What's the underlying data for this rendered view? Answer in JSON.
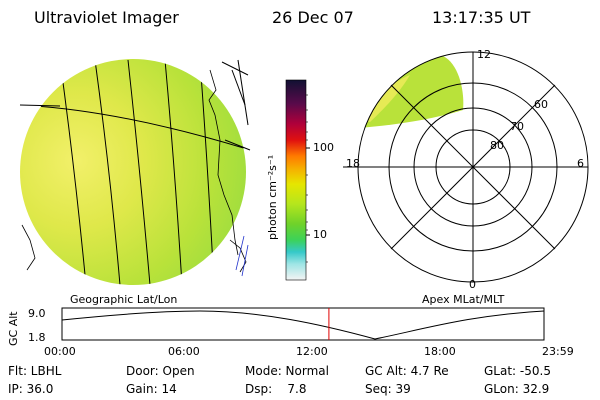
{
  "header": {
    "instrument": "Ultraviolet Imager",
    "date": "26 Dec 07",
    "time": "13:17:35 UT"
  },
  "colorbar": {
    "unit_label": "photon cm⁻²s⁻¹",
    "ticks": [
      "100",
      "10"
    ],
    "colors": [
      "#111133",
      "#7a0a3a",
      "#b0003a",
      "#e01010",
      "#ff7a00",
      "#f5b400",
      "#e6e600",
      "#b5e61d",
      "#7ed321",
      "#3cd25a",
      "#36c9c9",
      "#7adcdc",
      "#d8f4f4",
      "#f4f4f4"
    ]
  },
  "geo_panel": {
    "caption": "Geographic Lat/Lon"
  },
  "polar_panel": {
    "caption": "Apex MLat/MLT",
    "lat_labels": [
      "80",
      "70",
      "60"
    ],
    "mlt_labels": {
      "top": "12",
      "left": "18",
      "right": "6",
      "bottom": "0"
    }
  },
  "altitude_plot": {
    "ylabel": "GC Alt",
    "y_ticks": [
      "9.0",
      "1.8"
    ],
    "x_ticks": [
      "00:00",
      "06:00",
      "12:00",
      "18:00",
      "23:59"
    ],
    "current_time_marker_hour": 13.29
  },
  "status": {
    "row1": {
      "flt": "Flt: LBHL",
      "door": "Door: Open",
      "mode": "Mode: Normal",
      "gc_alt": "GC Alt: 4.7 Re",
      "glat": "GLat: -50.5"
    },
    "row2": {
      "ip": "IP: 36.0",
      "gain": "Gain: 14",
      "dsp": "Dsp:    7.8",
      "seq": "Seq: 39",
      "glon": "GLon: 32.9"
    }
  }
}
